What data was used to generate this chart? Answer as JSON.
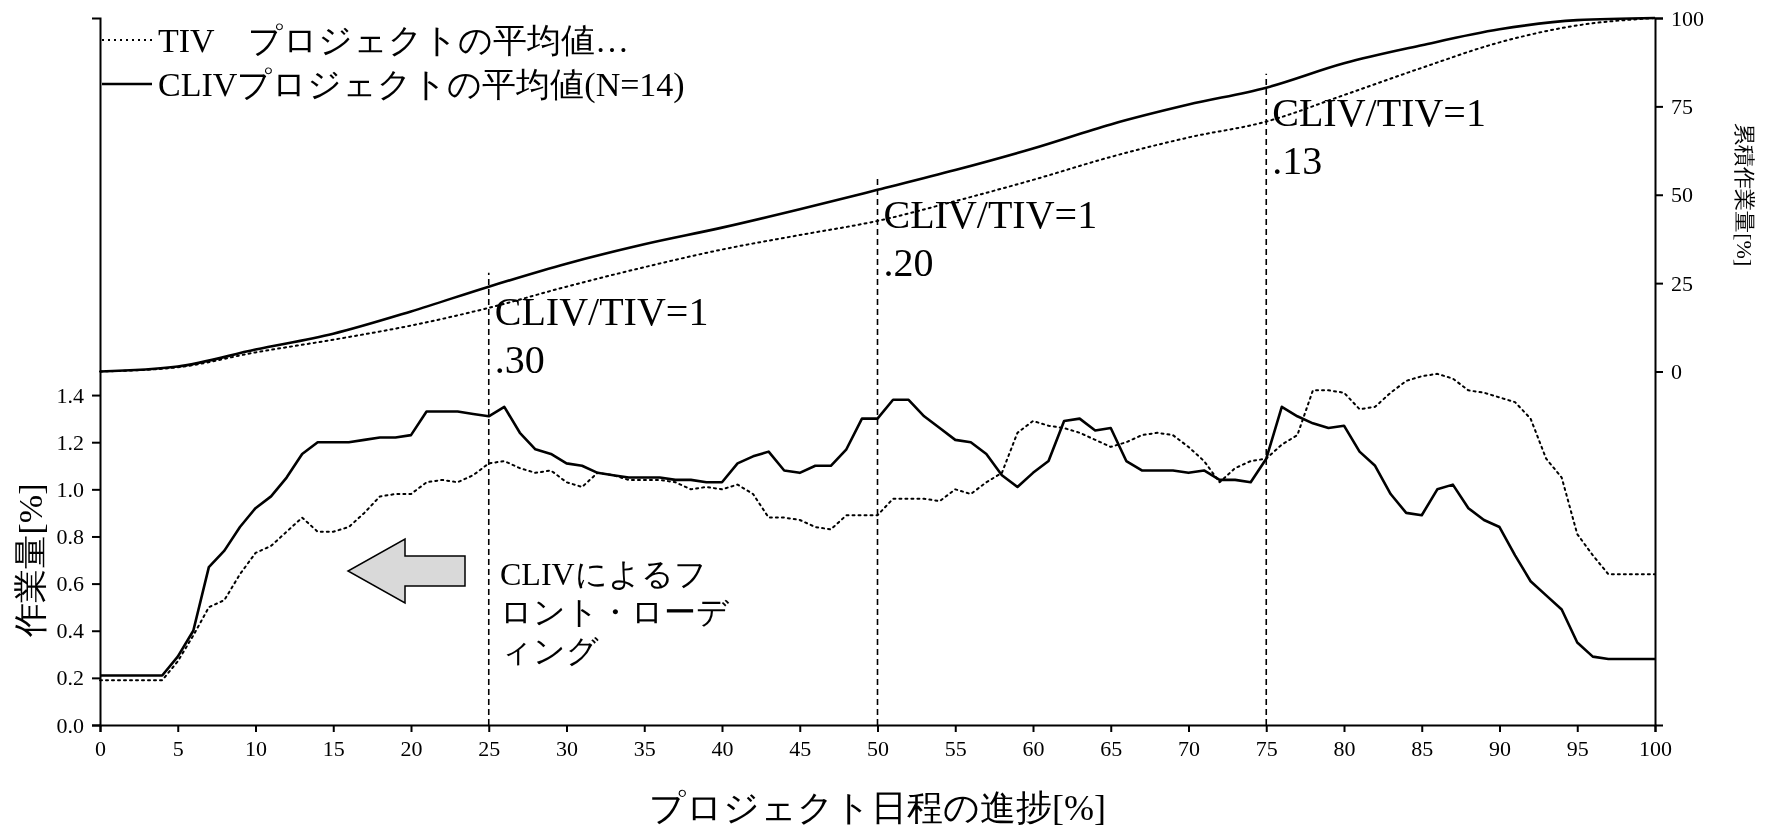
{
  "chart_data": {
    "type": "line",
    "xlabel": "プロジェクト日程の進捗[%]",
    "ylabel": "作業量[%]",
    "y2label": "累積作業量[%]",
    "x": [
      0,
      1,
      2,
      3,
      4,
      5,
      6,
      7,
      8,
      9,
      10,
      11,
      12,
      13,
      14,
      15,
      16,
      17,
      18,
      19,
      20,
      21,
      22,
      23,
      24,
      25,
      26,
      27,
      28,
      29,
      30,
      31,
      32,
      33,
      34,
      35,
      36,
      37,
      38,
      39,
      40,
      41,
      42,
      43,
      44,
      45,
      46,
      47,
      48,
      49,
      50,
      51,
      52,
      53,
      54,
      55,
      56,
      57,
      58,
      59,
      60,
      61,
      62,
      63,
      64,
      65,
      66,
      67,
      68,
      69,
      70,
      71,
      72,
      73,
      74,
      75,
      76,
      77,
      78,
      79,
      80,
      81,
      82,
      83,
      84,
      85,
      86,
      87,
      88,
      89,
      90,
      91,
      92,
      93,
      94,
      95,
      96,
      97,
      98,
      99,
      100
    ],
    "series": [
      {
        "name": "TIV　プロジェクトの平均値…",
        "color": "#000000",
        "line_style": "dotted",
        "values": [
          0.19,
          0.19,
          0.19,
          0.19,
          0.19,
          0.27,
          0.38,
          0.5,
          0.53,
          0.64,
          0.73,
          0.76,
          0.82,
          0.88,
          0.82,
          0.82,
          0.84,
          0.9,
          0.97,
          0.98,
          0.98,
          1.03,
          1.04,
          1.03,
          1.06,
          1.11,
          1.12,
          1.09,
          1.07,
          1.08,
          1.03,
          1.01,
          1.07,
          1.06,
          1.04,
          1.04,
          1.04,
          1.03,
          1.0,
          1.01,
          1.0,
          1.02,
          0.98,
          0.88,
          0.88,
          0.87,
          0.84,
          0.83,
          0.89,
          0.89,
          0.89,
          0.96,
          0.96,
          0.96,
          0.95,
          1.0,
          0.98,
          1.03,
          1.07,
          1.24,
          1.29,
          1.27,
          1.26,
          1.24,
          1.21,
          1.18,
          1.2,
          1.23,
          1.24,
          1.23,
          1.18,
          1.12,
          1.03,
          1.09,
          1.12,
          1.13,
          1.19,
          1.23,
          1.42,
          1.42,
          1.41,
          1.34,
          1.35,
          1.41,
          1.46,
          1.48,
          1.49,
          1.47,
          1.42,
          1.41,
          1.39,
          1.37,
          1.3,
          1.13,
          1.05,
          0.81,
          0.72,
          0.64,
          0.64,
          0.64,
          0.64
        ]
      },
      {
        "name": "CLIVプロジェクトの平均値(N=14)",
        "color": "#000000",
        "line_style": "solid",
        "values": [
          0.21,
          0.21,
          0.21,
          0.21,
          0.21,
          0.29,
          0.4,
          0.67,
          0.74,
          0.84,
          0.92,
          0.97,
          1.05,
          1.15,
          1.2,
          1.2,
          1.2,
          1.21,
          1.22,
          1.22,
          1.23,
          1.33,
          1.33,
          1.33,
          1.32,
          1.31,
          1.35,
          1.24,
          1.17,
          1.15,
          1.11,
          1.1,
          1.07,
          1.06,
          1.05,
          1.05,
          1.05,
          1.04,
          1.04,
          1.03,
          1.03,
          1.11,
          1.14,
          1.16,
          1.08,
          1.07,
          1.1,
          1.1,
          1.17,
          1.3,
          1.3,
          1.38,
          1.38,
          1.31,
          1.26,
          1.21,
          1.2,
          1.15,
          1.06,
          1.01,
          1.07,
          1.12,
          1.29,
          1.3,
          1.25,
          1.26,
          1.12,
          1.08,
          1.08,
          1.08,
          1.07,
          1.08,
          1.04,
          1.04,
          1.03,
          1.13,
          1.35,
          1.31,
          1.28,
          1.26,
          1.27,
          1.16,
          1.1,
          0.98,
          0.9,
          0.89,
          1.0,
          1.02,
          0.92,
          0.87,
          0.84,
          0.72,
          0.61,
          0.55,
          0.49,
          0.35,
          0.29,
          0.28,
          0.28,
          0.28,
          0.28
        ]
      },
      {
        "color": "#000000",
        "line_style": "dotted",
        "axis": "y2",
        "x": [
          0,
          5,
          10,
          15,
          20,
          25,
          30,
          35,
          40,
          45,
          50,
          55,
          60,
          65,
          70,
          75,
          80,
          85,
          90,
          95,
          100
        ],
        "values": [
          0,
          1.2,
          5.4,
          9,
          13,
          18,
          24,
          29.5,
          34.5,
          38.6,
          42.6,
          48.2,
          54.2,
          60.7,
          66.2,
          70.7,
          78.2,
          85.9,
          93.1,
          97.9,
          100
        ]
      },
      {
        "color": "#000000",
        "line_style": "solid",
        "axis": "y2",
        "x": [
          0,
          5,
          10,
          15,
          20,
          25,
          30,
          35,
          40,
          45,
          50,
          55,
          60,
          65,
          70,
          75,
          80,
          85,
          90,
          95,
          100
        ],
        "values": [
          0,
          1.4,
          6.2,
          10.7,
          17,
          24,
          30.5,
          36,
          40.7,
          45.9,
          51.4,
          57,
          63.1,
          69.9,
          75.5,
          80.3,
          87.2,
          92.3,
          96.8,
          99.4,
          100
        ]
      }
    ],
    "xlim": [
      0,
      100
    ],
    "xticks": [
      0,
      5,
      10,
      15,
      20,
      25,
      30,
      35,
      40,
      45,
      50,
      55,
      60,
      65,
      70,
      75,
      80,
      85,
      90,
      95,
      100
    ],
    "ylim": [
      0,
      3.0
    ],
    "yticks": [
      {
        "value": 0,
        "label": "0.0"
      },
      0.2,
      0.4,
      0.6,
      0.8,
      {
        "value": 1,
        "label": "1.0"
      },
      1.2,
      1.4
    ],
    "y2lim": [
      -100,
      100
    ],
    "y2ticks": [
      0,
      25,
      50,
      75,
      100
    ],
    "legend": "top left",
    "ref_lines": [
      {
        "axis": "x",
        "value": 25,
        "line_style": "dashed",
        "color": "#000000"
      },
      {
        "axis": "x",
        "value": 50,
        "line_style": "dashed",
        "color": "#000000"
      },
      {
        "axis": "x",
        "value": 75,
        "line_style": "dashed",
        "color": "#000000"
      }
    ],
    "annotations": [
      {
        "text": "CLIV/TIV=1.30",
        "x": 25
      },
      {
        "text": "CLIV/TIV=1.20",
        "x": 50
      },
      {
        "text": "CLIV/TIV=1.13",
        "x": 75
      },
      "CLIVによるフロント・ローディング"
    ]
  }
}
